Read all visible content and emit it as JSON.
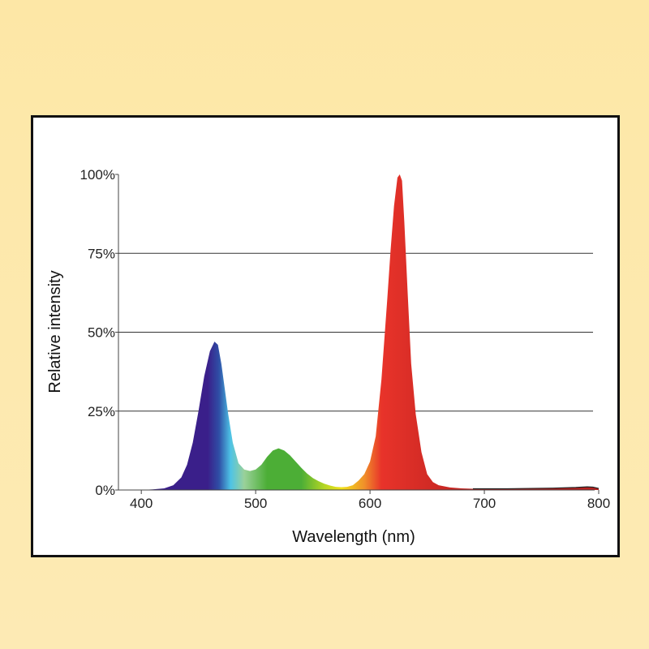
{
  "chart_data": {
    "type": "area",
    "title": "",
    "xlabel": "Wavelength (nm)",
    "ylabel": "Relative intensity",
    "xlim": [
      380,
      800
    ],
    "ylim": [
      0,
      100
    ],
    "x_ticks": [
      400,
      500,
      600,
      700,
      800
    ],
    "x_tick_labels": [
      "400",
      "500",
      "600",
      "700",
      "800"
    ],
    "y_ticks": [
      0,
      25,
      50,
      75,
      100
    ],
    "y_tick_labels": [
      "0%",
      "25%",
      "50%",
      "75%",
      "100%"
    ],
    "grid": "horizontal",
    "series": [
      {
        "x": [
          380,
          400,
          410,
          420,
          428,
          435,
          440,
          445,
          450,
          455,
          460,
          464,
          467,
          470,
          473,
          476,
          480,
          485,
          490,
          495,
          500,
          505,
          510,
          515,
          520,
          525,
          530,
          535,
          540,
          545,
          550,
          555,
          560,
          565,
          570,
          575,
          580,
          585,
          590,
          595,
          600,
          605,
          610,
          615,
          618,
          621,
          624,
          626,
          628,
          630,
          633,
          636,
          640,
          645,
          650,
          655,
          660,
          670,
          680,
          690,
          700,
          720,
          740,
          760,
          780,
          790,
          795,
          800
        ],
        "values": [
          0,
          0,
          0.2,
          0.5,
          1.5,
          4,
          8,
          15,
          25,
          36,
          44,
          47,
          46,
          40,
          32,
          24,
          15,
          8.5,
          6.5,
          6,
          6.5,
          8,
          10.5,
          12.5,
          13.2,
          12.5,
          11,
          9,
          7,
          5.2,
          3.8,
          2.8,
          2,
          1.4,
          1,
          0.9,
          1,
          1.5,
          3,
          5,
          9,
          17,
          35,
          60,
          76,
          90,
          99,
          100,
          98,
          85,
          62,
          40,
          24,
          12,
          5,
          2.5,
          1.5,
          0.8,
          0.5,
          0.4,
          0.4,
          0.4,
          0.5,
          0.6,
          0.8,
          1,
          0.9,
          0.5
        ]
      }
    ],
    "colors": {
      "violet": "#3a1f8a",
      "blue": "#2f4fa6",
      "cyan": "#4ec3e6",
      "light_green": "#9ad19a",
      "green": "#4cae36",
      "yellow_green": "#b5d624",
      "yellow": "#f2e21a",
      "orange": "#f0902a",
      "red": "#e8332a",
      "dark_red": "#b8211f"
    }
  }
}
